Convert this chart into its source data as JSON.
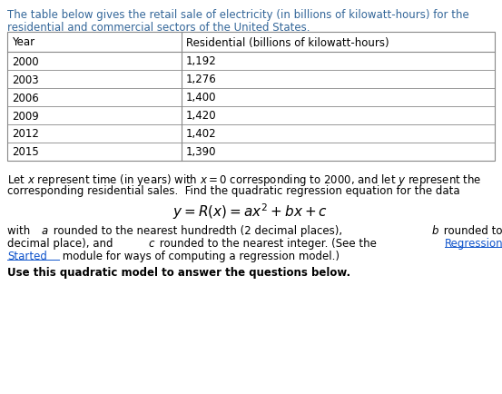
{
  "intro_line1": "The table below gives the retail sale of electricity (in billions of kilowatt-hours) for the",
  "intro_line2": "residential and commercial sectors of the United States.",
  "table_headers": [
    "Year",
    "Residential (billions of kilowatt-hours)"
  ],
  "table_rows": [
    [
      "2000",
      "1,192"
    ],
    [
      "2003",
      "1,276"
    ],
    [
      "2006",
      "1,400"
    ],
    [
      "2009",
      "1,420"
    ],
    [
      "2012",
      "1,402"
    ],
    [
      "2015",
      "1,390"
    ]
  ],
  "para1_line1": "Let $x$ represent time (in years) with $x = 0$ corresponding to 2000, and let $y$ represent the",
  "para1_line2": "corresponding residential sales.  Find the quadratic regression equation for the data",
  "equation": "$y = R(x) = ax^2 + bx + c$",
  "bold_line": "Use this quadratic model to answer the questions below.",
  "bg_color": "#ffffff",
  "text_color": "#000000",
  "blue_color": "#336699",
  "link_color": "#1155cc",
  "table_border_color": "#888888",
  "font_size": 8.5,
  "eq_font_size": 11.0
}
